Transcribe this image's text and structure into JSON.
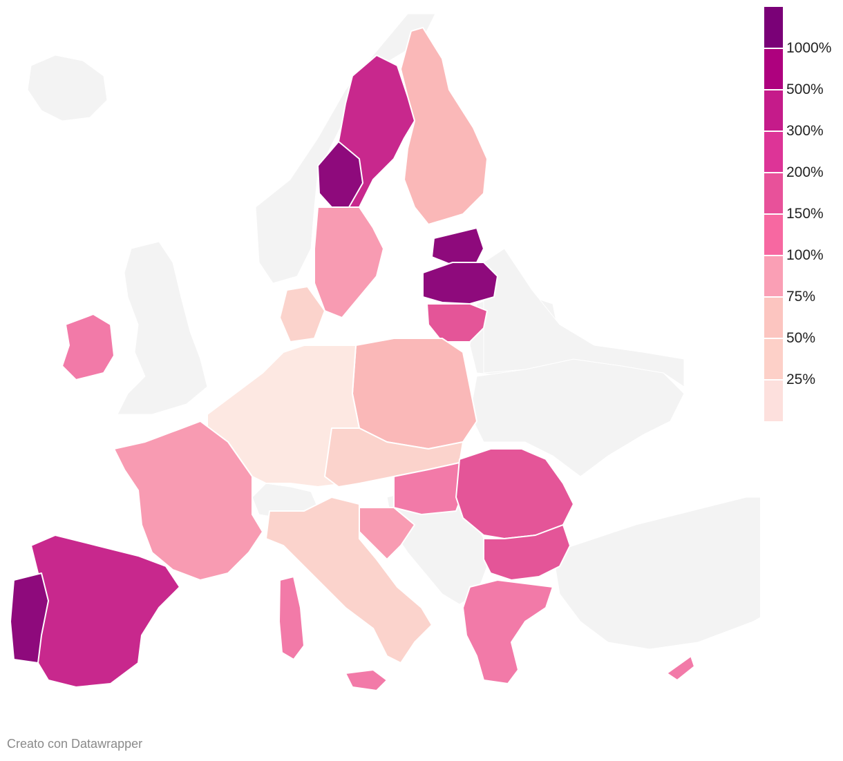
{
  "legend": {
    "labels": [
      "1000%",
      "500%",
      "300%",
      "200%",
      "150%",
      "100%",
      "75%",
      "50%",
      "25%"
    ],
    "colors": [
      "#7a0177",
      "#ae017e",
      "#c51b8a",
      "#dd3497",
      "#e8519a",
      "#f768a1",
      "#fa9fb5",
      "#fcc5c0",
      "#fdd0c8",
      "#fde0dd"
    ]
  },
  "colors": {
    "land_outside": "#f3f3f3",
    "borders": "#ffffff",
    "region_palette": [
      "#fde8e2",
      "#fbd3cc",
      "#fab8b8",
      "#f89bb2",
      "#f27aa8",
      "#e45598",
      "#c8288d",
      "#8e0a7c"
    ]
  },
  "map": {
    "countries_outside": [
      "iceland-icon",
      "uk-icon",
      "norway-icon",
      "switzerland-icon",
      "balkans-icon",
      "belarus-icon",
      "ukraine-icon",
      "russia-icon",
      "turkey-icon"
    ],
    "regions": [
      {
        "name": "finland",
        "level": 2
      },
      {
        "name": "sweden-north",
        "level": 6
      },
      {
        "name": "sweden-west",
        "level": 7
      },
      {
        "name": "sweden-south",
        "level": 3
      },
      {
        "name": "estonia",
        "level": 7
      },
      {
        "name": "latvia",
        "level": 7
      },
      {
        "name": "lithuania",
        "level": 5
      },
      {
        "name": "poland",
        "level": 2
      },
      {
        "name": "ireland",
        "level": 4
      },
      {
        "name": "germany-benelux",
        "level": 0
      },
      {
        "name": "denmark",
        "level": 1
      },
      {
        "name": "france",
        "level": 3
      },
      {
        "name": "spain",
        "level": 6
      },
      {
        "name": "portugal",
        "level": 7
      },
      {
        "name": "italy",
        "level": 1
      },
      {
        "name": "austria-czech-slovakia",
        "level": 1
      },
      {
        "name": "hungary",
        "level": 4
      },
      {
        "name": "romania",
        "level": 5
      },
      {
        "name": "bulgaria",
        "level": 5
      },
      {
        "name": "greece",
        "level": 4
      },
      {
        "name": "croatia",
        "level": 3
      },
      {
        "name": "corsica-sardinia",
        "level": 4
      },
      {
        "name": "sicily",
        "level": 4
      },
      {
        "name": "cyprus",
        "level": 4
      }
    ]
  },
  "credit": "Creato con Datawrapper"
}
